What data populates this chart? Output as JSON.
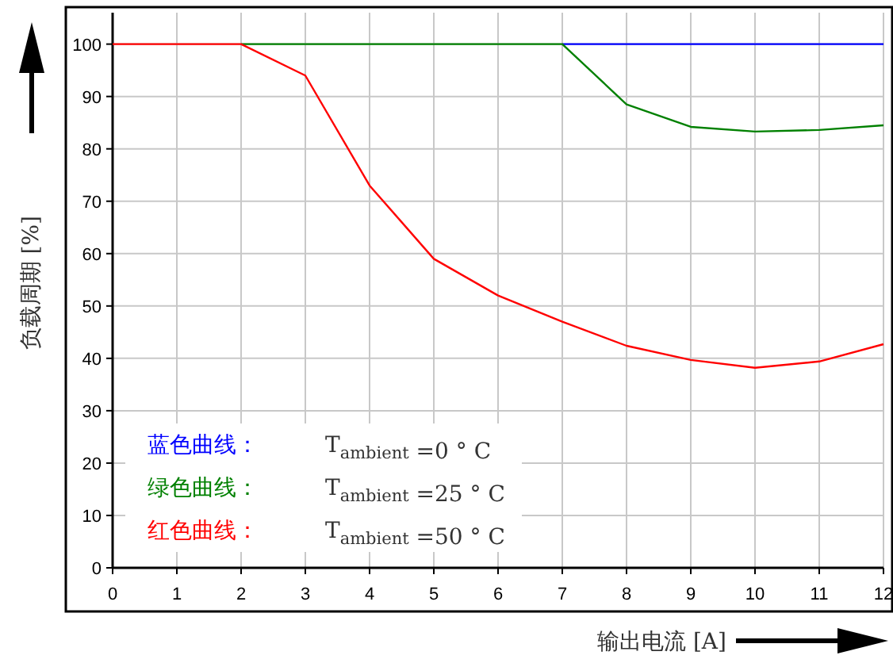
{
  "chart_data": {
    "type": "line",
    "xlabel": "输出电流 [A]",
    "ylabel": "负载周期 [%]",
    "x": [
      0,
      1,
      2,
      3,
      4,
      5,
      6,
      7,
      8,
      9,
      10,
      11,
      12
    ],
    "series": [
      {
        "name": "蓝色曲线：",
        "color": "#0000ff",
        "values": [
          null,
          null,
          null,
          null,
          null,
          null,
          null,
          100,
          100,
          100,
          100,
          100,
          100
        ]
      },
      {
        "name": "绿色曲线：",
        "color": "#008000",
        "values": [
          null,
          null,
          100,
          100,
          100,
          100,
          100,
          100,
          88.5,
          84.2,
          83.3,
          83.6,
          84.5
        ]
      },
      {
        "name": "红色曲线：",
        "color": "#ff0000",
        "values": [
          100,
          100,
          100,
          94,
          73,
          59,
          52,
          47,
          42.4,
          39.7,
          38.2,
          39.4,
          42.7
        ]
      }
    ],
    "annotations": [
      "T$_{ambient}$ =0 ° C",
      "T$_{ambient}$ =25 ° C",
      "T$_{ambient}$ =50 ° C"
    ],
    "xlim": [
      0,
      12
    ],
    "ylim": [
      0,
      106
    ],
    "xticks": [
      0,
      1,
      2,
      3,
      4,
      5,
      6,
      7,
      8,
      9,
      10,
      11,
      12
    ],
    "yticks": [
      0,
      10,
      20,
      30,
      40,
      50,
      60,
      70,
      80,
      90,
      100
    ],
    "grid": true,
    "legend": "bottom left",
    "marker": "none",
    "line_style": "solid"
  }
}
